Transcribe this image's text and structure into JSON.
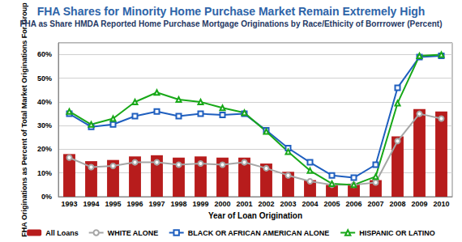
{
  "chart_data": {
    "type": "bar",
    "title": "FHA Shares for Minority Home Purchase Market Remain Extremely High",
    "subtitle": "FHA as Share HMDA Reported Home Purchase Mortgage Originations by Race/Ethicity of Borrrower (Percent)",
    "x_label": "Year of Loan Origination",
    "y_label": "FHA Originations as Percent of Total Market Originations For Group",
    "categories": [
      "1993",
      "1994",
      "1995",
      "1996",
      "1997",
      "1998",
      "1999",
      "2000",
      "2001",
      "2002",
      "2003",
      "2004",
      "2005",
      "2006",
      "2007",
      "2008",
      "2009",
      "2010"
    ],
    "series": [
      {
        "name": "All Loans",
        "type": "bar",
        "color": "#b71c1c",
        "values": [
          18,
          15,
          15.5,
          17,
          17.5,
          16.5,
          17,
          16.5,
          16.5,
          14,
          10.5,
          7,
          5,
          5.5,
          7,
          25.5,
          37,
          36
        ]
      },
      {
        "name": "WHITE ALONE",
        "type": "line",
        "color": "#a6a6a6",
        "marker": "circle",
        "values": [
          16.5,
          12.5,
          13,
          14.5,
          14.5,
          13.5,
          14,
          13.5,
          14.5,
          12,
          9,
          6.5,
          5,
          5,
          6,
          23.5,
          35,
          33
        ]
      },
      {
        "name": "BLACK OR AFRICAN AMERICAN ALONE",
        "type": "line",
        "color": "#1f5fbf",
        "marker": "square",
        "values": [
          35,
          29.5,
          30.5,
          34,
          36,
          34,
          35,
          34.5,
          35,
          28,
          20.5,
          14.5,
          9,
          8,
          13.5,
          46,
          59,
          59.5
        ]
      },
      {
        "name": "HISPANIC OR LATINO",
        "type": "line",
        "color": "#18a818",
        "marker": "triangle",
        "values": [
          36,
          30.5,
          33,
          40,
          44,
          41,
          40,
          37.5,
          35.5,
          27.5,
          19,
          11,
          5.5,
          5,
          8.5,
          39.5,
          59.5,
          60
        ]
      }
    ],
    "ylim": [
      0,
      65
    ],
    "yticks": [
      {
        "value": 0,
        "label": "0%"
      },
      {
        "value": 10,
        "label": "10%"
      },
      {
        "value": 20,
        "label": "20%"
      },
      {
        "value": 30,
        "label": "30%"
      },
      {
        "value": 40,
        "label": "40%"
      },
      {
        "value": 50,
        "label": "50%"
      },
      {
        "value": 60,
        "label": "60%"
      }
    ],
    "grid": true,
    "legend": "bottom"
  }
}
